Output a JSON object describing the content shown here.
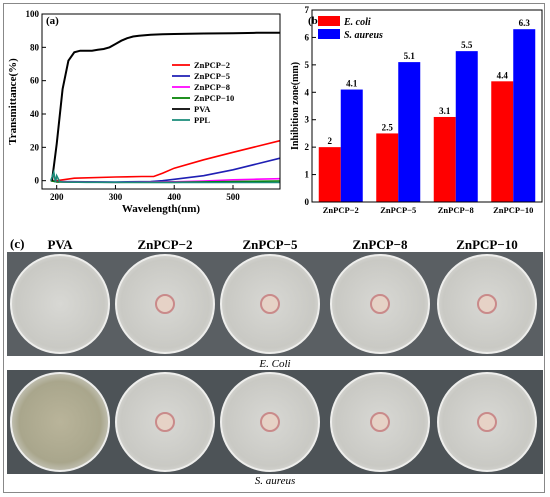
{
  "panel_c_label": "(c)",
  "panel_c_columns": [
    "PVA",
    "ZnPCP−2",
    "ZnPCP−5",
    "ZnPCP−8",
    "ZnPCP−10"
  ],
  "panel_c_rows": [
    "E. Coli",
    "S. aureus"
  ],
  "colors": {
    "red": "#ff0000",
    "blue": "#0000ff",
    "black": "#000000",
    "magenta": "#ff00ff",
    "navy": "#1f1fb4",
    "green": "#008000",
    "teal": "#1a8c7a"
  },
  "chart_data": [
    {
      "panel": "(a)",
      "type": "line",
      "xlabel": "Wavelength(nm)",
      "ylabel": "Transmittance(%)",
      "xlim": [
        175,
        580
      ],
      "ylim": [
        -5,
        100
      ],
      "xticks": [
        200,
        300,
        400,
        500
      ],
      "yticks": [
        0,
        20,
        40,
        60,
        80,
        100
      ],
      "legend_position": "center-right",
      "series": [
        {
          "name": "ZnPCP−2",
          "color": "#ff0000",
          "x": [
            190,
            200,
            230,
            300,
            345,
            365,
            380,
            400,
            450,
            500,
            540,
            580
          ],
          "y": [
            0,
            0,
            1.5,
            2.2,
            2.5,
            2.5,
            4.5,
            7.5,
            12.5,
            17,
            20.5,
            24
          ]
        },
        {
          "name": "ZnPCP−5",
          "color": "#1f1fb4",
          "x": [
            190,
            200,
            300,
            360,
            380,
            400,
            450,
            500,
            540,
            580
          ],
          "y": [
            0,
            -0.5,
            -0.8,
            -0.5,
            0,
            0.8,
            3,
            6.5,
            10,
            13.5
          ]
        },
        {
          "name": "ZnPCP−8",
          "color": "#ff00ff",
          "x": [
            190,
            200,
            300,
            400,
            450,
            500,
            540,
            580
          ],
          "y": [
            0,
            -0.7,
            -1,
            -0.7,
            -0.2,
            0.5,
            0.9,
            1.2
          ]
        },
        {
          "name": "ZnPCP−10",
          "color": "#008000",
          "x": [
            190,
            200,
            300,
            400,
            500,
            580
          ],
          "y": [
            0,
            -0.8,
            -1,
            -1,
            -0.5,
            -0.2
          ]
        },
        {
          "name": "PVA",
          "color": "#000000",
          "x": [
            192,
            200,
            210,
            220,
            230,
            240,
            250,
            260,
            270,
            280,
            290,
            300,
            310,
            320,
            330,
            340,
            350,
            360,
            380,
            400,
            450,
            500,
            540,
            580
          ],
          "y": [
            0,
            22,
            55,
            72,
            77,
            78,
            78,
            78,
            78.5,
            79,
            80,
            82,
            84,
            85.5,
            86.5,
            87,
            87.3,
            87.5,
            87.8,
            88,
            88.3,
            88.5,
            88.7,
            88.8
          ]
        },
        {
          "name": "PPL",
          "color": "#1a8c7a",
          "x": [
            190,
            195,
            198,
            200,
            205,
            210,
            250,
            300,
            400,
            500,
            580
          ],
          "y": [
            0,
            5,
            -1,
            3,
            -0.5,
            -0.8,
            -1,
            -1,
            -1.1,
            -1.1,
            -1.1
          ]
        }
      ]
    },
    {
      "panel": "(b)",
      "type": "bar",
      "ylabel": "Inhibition zone(mm)",
      "categories": [
        "ZnPCP−2",
        "ZnPCP−5",
        "ZnPCP−8",
        "ZnPCP−10"
      ],
      "ylim": [
        0,
        7
      ],
      "yticks": [
        0,
        1,
        2,
        3,
        4,
        5,
        6,
        7
      ],
      "legend_position": "top-left",
      "series": [
        {
          "name": "E. coli",
          "color": "#ff0000",
          "values": [
            2,
            2.5,
            3.1,
            4.4
          ],
          "labels": [
            "2",
            "2.5",
            "3.1",
            "4.4"
          ]
        },
        {
          "name": "S. aureus",
          "color": "#0000ff",
          "values": [
            4.1,
            5.1,
            5.5,
            6.3
          ],
          "labels": [
            "4.1",
            "5.1",
            "5.5",
            "6.3"
          ]
        }
      ]
    }
  ]
}
